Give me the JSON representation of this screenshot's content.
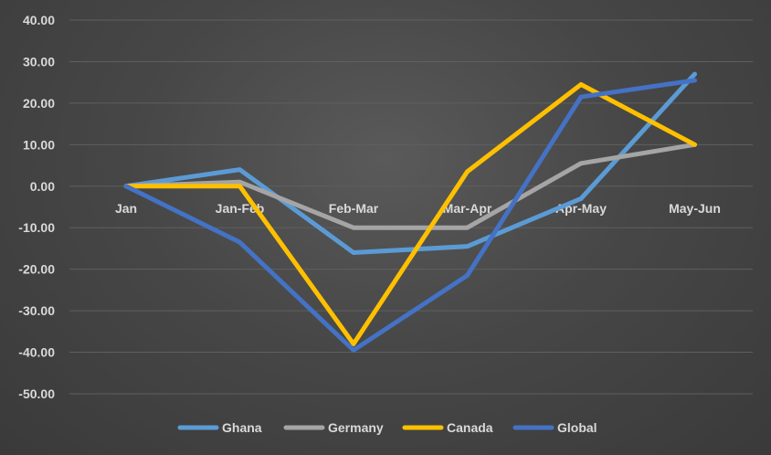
{
  "chart_data": {
    "type": "line",
    "title": "",
    "xlabel": "",
    "ylabel": "",
    "categories": [
      "Jan",
      "Jan-Feb",
      "Feb-Mar",
      "Mar-Apr",
      "Apr-May",
      "May-Jun"
    ],
    "ylim": [
      -50,
      40
    ],
    "yticks": [
      "40.00",
      "30.00",
      "20.00",
      "10.00",
      "0.00",
      "-10.00",
      "-20.00",
      "-30.00",
      "-40.00",
      "-50.00"
    ],
    "grid": true,
    "legend_position": "bottom",
    "series": [
      {
        "name": "Ghana",
        "color": "#5b9bd5",
        "values": [
          0,
          4,
          -16,
          -14.5,
          -3,
          27
        ]
      },
      {
        "name": "Germany",
        "color": "#a5a5a5",
        "values": [
          0,
          1,
          -10,
          -10,
          5.5,
          10
        ]
      },
      {
        "name": "Canada",
        "color": "#ffc000",
        "values": [
          0,
          0,
          -38,
          3.5,
          24.5,
          10
        ]
      },
      {
        "name": "Global",
        "color": "#4472c4",
        "values": [
          0,
          -13.5,
          -39.5,
          -21.5,
          21.5,
          25.5
        ]
      }
    ]
  }
}
